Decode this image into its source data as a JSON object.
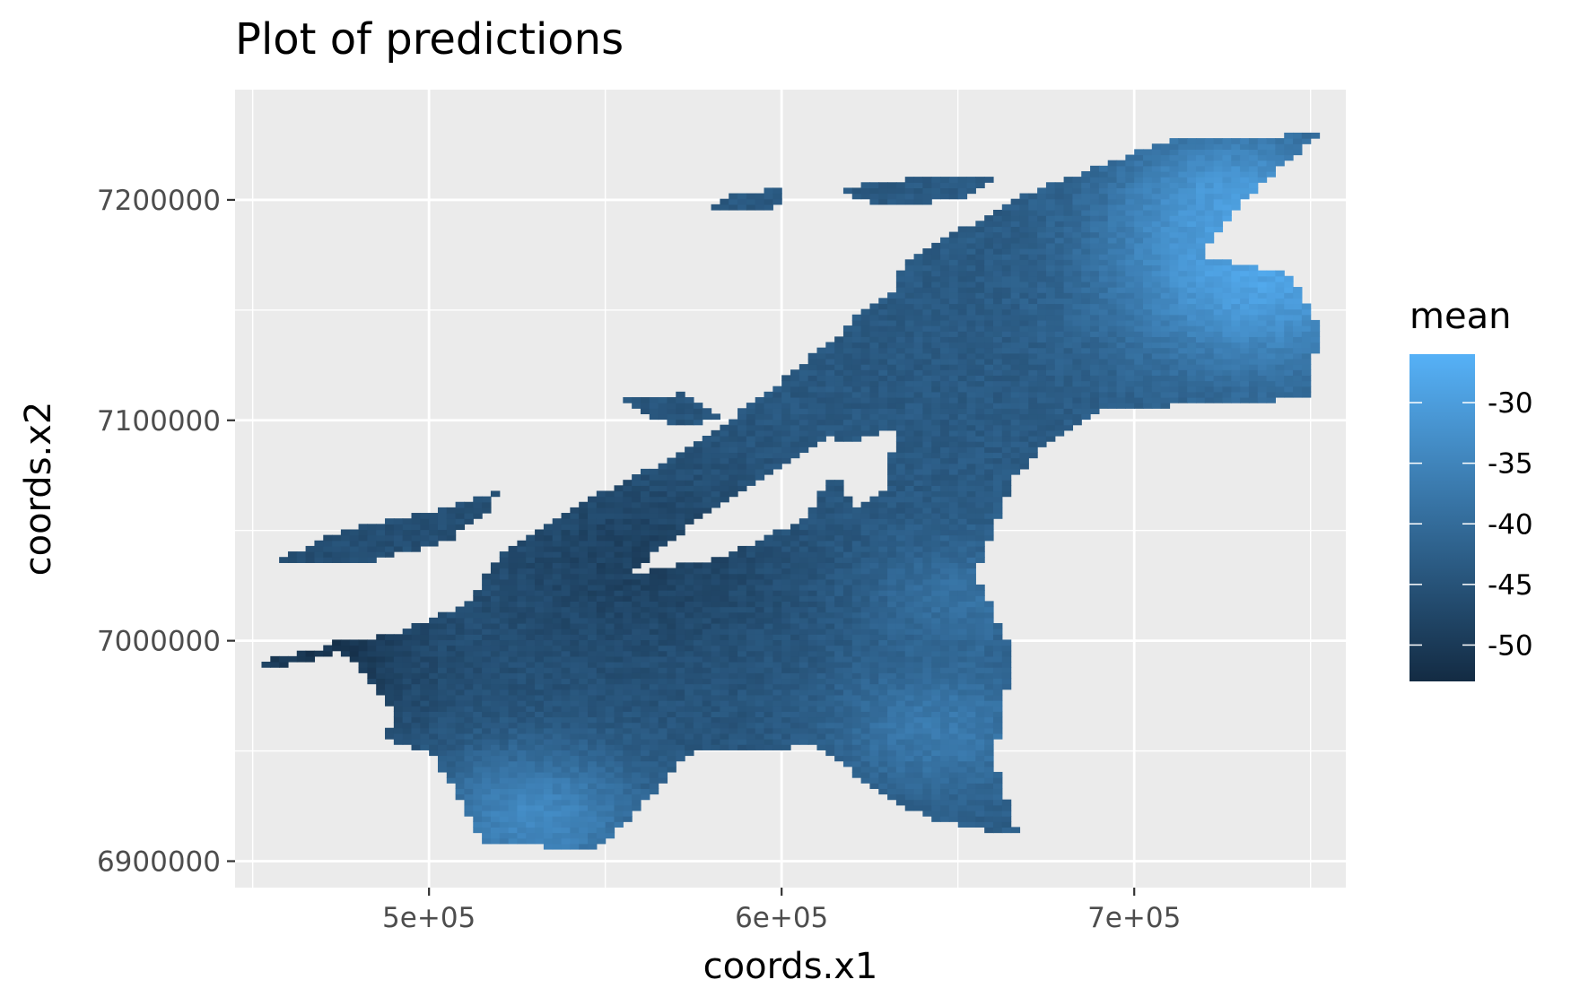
{
  "chart_data": {
    "type": "heatmap",
    "title": "Plot of predictions",
    "xlabel": "coords.x1",
    "ylabel": "coords.x2",
    "xlim": [
      445000,
      760000
    ],
    "ylim": [
      6888000,
      7250000
    ],
    "x_ticks": [
      {
        "value": 500000,
        "label": "5e+05"
      },
      {
        "value": 600000,
        "label": "6e+05"
      },
      {
        "value": 700000,
        "label": "7e+05"
      }
    ],
    "x_minor": [
      450000,
      550000,
      650000,
      750000
    ],
    "y_ticks": [
      {
        "value": 6900000,
        "label": "6900000"
      },
      {
        "value": 7000000,
        "label": "7000000"
      },
      {
        "value": 7100000,
        "label": "7100000"
      },
      {
        "value": 7200000,
        "label": "7200000"
      }
    ],
    "y_minor": [
      6950000,
      7050000,
      7150000
    ],
    "grid": true,
    "legend": {
      "title": "mean",
      "position": "right",
      "min": -53,
      "max": -26,
      "ticks": [
        {
          "value": -30,
          "label": "-30"
        },
        {
          "value": -35,
          "label": "-35"
        },
        {
          "value": -40,
          "label": "-40"
        },
        {
          "value": -45,
          "label": "-45"
        },
        {
          "value": -50,
          "label": "-50"
        }
      ],
      "low_color": "#132B43",
      "high_color": "#56B1F7"
    },
    "panel_background": "#ebebeb",
    "cell_size": [
      2500,
      2500
    ],
    "region_polygon": [
      [
        468000,
        6998000
      ],
      [
        490000,
        7003000
      ],
      [
        512000,
        7018000
      ],
      [
        520000,
        7040000
      ],
      [
        540000,
        7060000
      ],
      [
        565000,
        7080000
      ],
      [
        585000,
        7100000
      ],
      [
        600000,
        7118000
      ],
      [
        617000,
        7140000
      ],
      [
        628000,
        7160000
      ],
      [
        640000,
        7178000
      ],
      [
        655000,
        7190000
      ],
      [
        670000,
        7203000
      ],
      [
        690000,
        7215000
      ],
      [
        710000,
        7227000
      ],
      [
        752000,
        7230000
      ],
      [
        730000,
        7198000
      ],
      [
        718000,
        7175000
      ],
      [
        745000,
        7166000
      ],
      [
        752000,
        7142000
      ],
      [
        750000,
        7110000
      ],
      [
        690000,
        7105000
      ],
      [
        675000,
        7090000
      ],
      [
        665000,
        7072000
      ],
      [
        660000,
        7050000
      ],
      [
        655000,
        7030000
      ],
      [
        665000,
        6995000
      ],
      [
        663000,
        6968000
      ],
      [
        660000,
        6947000
      ],
      [
        667000,
        6912000
      ],
      [
        645000,
        6918000
      ],
      [
        628000,
        6930000
      ],
      [
        611000,
        6952000
      ],
      [
        575000,
        6951000
      ],
      [
        560000,
        6925000
      ],
      [
        547000,
        6905000
      ],
      [
        515000,
        6909000
      ],
      [
        508000,
        6930000
      ],
      [
        500000,
        6950000
      ],
      [
        488000,
        6955000
      ],
      [
        490000,
        6968000
      ],
      [
        478000,
        6993000
      ]
    ],
    "gap_polygons": [
      [
        [
          556000,
          7030000
        ],
        [
          583000,
          7038000
        ],
        [
          606000,
          7055000
        ],
        [
          617000,
          7080000
        ],
        [
          615000,
          7095000
        ],
        [
          600000,
          7080000
        ],
        [
          585000,
          7065000
        ],
        [
          568000,
          7045000
        ]
      ],
      [
        [
          620000,
          7060000
        ],
        [
          612000,
          7088000
        ],
        [
          632000,
          7096000
        ],
        [
          630000,
          7068000
        ]
      ],
      [
        [
          622000,
          7150000
        ],
        [
          610000,
          7162000
        ],
        [
          630000,
          7172000
        ],
        [
          634000,
          7160000
        ]
      ],
      [
        [
          610000,
          7185000
        ],
        [
          620000,
          7195000
        ],
        [
          630000,
          7190000
        ],
        [
          625000,
          7182000
        ]
      ]
    ],
    "islands": [
      [
        [
          455000,
          7035000
        ],
        [
          475000,
          7050000
        ],
        [
          500000,
          7058000
        ],
        [
          520000,
          7068000
        ],
        [
          516000,
          7058000
        ],
        [
          505000,
          7045000
        ],
        [
          480000,
          7035000
        ]
      ],
      [
        [
          450000,
          6990000
        ],
        [
          465000,
          6995000
        ],
        [
          478000,
          6998000
        ],
        [
          470000,
          6993000
        ],
        [
          458000,
          6988000
        ]
      ],
      [
        [
          615000,
          7205000
        ],
        [
          640000,
          7210000
        ],
        [
          660000,
          7210000
        ],
        [
          650000,
          7200000
        ],
        [
          628000,
          7198000
        ]
      ],
      [
        [
          598000,
          7195000
        ],
        [
          600000,
          7205000
        ],
        [
          585000,
          7202000
        ],
        [
          580000,
          7196000
        ]
      ],
      [
        [
          553000,
          7110000
        ],
        [
          572000,
          7112000
        ],
        [
          585000,
          7100000
        ],
        [
          568000,
          7098000
        ]
      ]
    ],
    "hotspots": [
      {
        "x": 735000,
        "y": 7165000,
        "value": -26.5,
        "r": 40000
      },
      {
        "x": 728000,
        "y": 7200000,
        "value": -29,
        "r": 30000
      },
      {
        "x": 530000,
        "y": 6920000,
        "value": -32,
        "r": 32000
      },
      {
        "x": 645000,
        "y": 6960000,
        "value": -36,
        "r": 30000
      },
      {
        "x": 650000,
        "y": 7020000,
        "value": -38,
        "r": 25000
      },
      {
        "x": 470000,
        "y": 6995000,
        "value": -52,
        "r": 25000
      },
      {
        "x": 560000,
        "y": 7035000,
        "value": -49,
        "r": 40000
      }
    ]
  }
}
